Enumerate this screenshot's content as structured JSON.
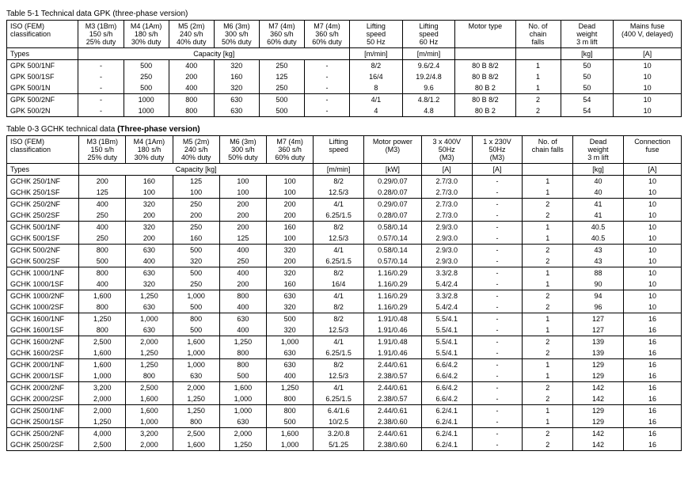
{
  "table1": {
    "title_prefix": "Table 5-1 Technical data GPK ",
    "title_suffix": "(three-phase version)",
    "header1": {
      "iso": "ISO (FEM)\nclassification",
      "m3": "M3 (1Bm)\n150 s/h\n25% duty",
      "m4": "M4 (1Am)\n180 s/h\n30% duty",
      "m5": "M5 (2m)\n240 s/h\n40% duty",
      "m6": "M6 (3m)\n300 s/h\n50% duty",
      "m7a": "M7 (4m)\n360 s/h\n60% duty",
      "m7b": "M7 (4m)\n360 s/h\n60% duty",
      "ls50": "Lifting\nspeed\n50 Hz",
      "ls60": "Lifting\nspeed\n60 Hz",
      "motor": "Motor type",
      "chain": "No. of\nchain\nfalls",
      "dead": "Dead\nweight\n3 m lift",
      "fuse": "Mains fuse\n(400 V, delayed)"
    },
    "header2": {
      "types": "Types",
      "capacity": "Capacity [kg]",
      "mmin1": "[m/min]",
      "mmin2": "[m/min]",
      "blank1": "",
      "blank2": "",
      "kg": "[kg]",
      "a": "[A]"
    },
    "groups": [
      {
        "types": [
          "GPK 500/1NF",
          "GPK 500/1SF",
          "GPK 500/1N"
        ],
        "m3": [
          "-",
          "-",
          "-"
        ],
        "m4": [
          "500",
          "250",
          "500"
        ],
        "m5": [
          "400",
          "200",
          "400"
        ],
        "m6": [
          "320",
          "160",
          "320"
        ],
        "m7a": [
          "250",
          "125",
          "250"
        ],
        "m7b": [
          "-",
          "-",
          "-"
        ],
        "ls50": [
          "8/2",
          "16/4",
          "8"
        ],
        "ls60": [
          "9.6/2.4",
          "19.2/4.8",
          "9.6"
        ],
        "motor": [
          "80 B 8/2",
          "80 B 8/2",
          "80 B 2"
        ],
        "chain": [
          "1",
          "1",
          "1"
        ],
        "dead": [
          "50",
          "50",
          "50"
        ],
        "fuse": [
          "10",
          "10",
          "10"
        ]
      },
      {
        "types": [
          "GPK 500/2NF",
          "GPK 500/2N"
        ],
        "m3": [
          "-",
          "-"
        ],
        "m4": [
          "1000",
          "1000"
        ],
        "m5": [
          "800",
          "800"
        ],
        "m6": [
          "630",
          "630"
        ],
        "m7a": [
          "500",
          "500"
        ],
        "m7b": [
          "-",
          "-"
        ],
        "ls50": [
          "4/1",
          "4"
        ],
        "ls60": [
          "4.8/1.2",
          "4.8"
        ],
        "motor": [
          "80 B 8/2",
          "80 B 2"
        ],
        "chain": [
          "2",
          "2"
        ],
        "dead": [
          "54",
          "54"
        ],
        "fuse": [
          "10",
          "10"
        ]
      }
    ]
  },
  "table2": {
    "title_prefix": "Table 0-3  GCHK technical data ",
    "title_suffix": "(Three-phase version)",
    "header1": {
      "iso": "ISO (FEM)\nclassification",
      "m3": "M3 (1Bm)\n150 s/h\n25% duty",
      "m4": "M4 (1Am)\n180 s/h\n30% duty",
      "m5": "M5 (2m)\n240 s/h\n40% duty",
      "m6": "M6 (3m)\n300 s/h\n50% duty",
      "m7": "M7 (4m)\n360 s/h\n60% duty",
      "ls": "Lifting\nspeed",
      "mp": "Motor power\n(M3)",
      "v400": "3 x 400V\n50Hz\n(M3)",
      "v230": "1 x 230V\n50Hz\n(M3)",
      "chain": "No. of\nchain falls",
      "dead": "Dead\nweight\n3 m lift",
      "fuse": "Connection\nfuse"
    },
    "header2": {
      "types": "Types",
      "capacity": "Capacity [kg]",
      "mmin": "[m/min]",
      "kw": "[kW]",
      "a1": "[A]",
      "a2": "[A]",
      "blank": "",
      "kg": "[kg]",
      "a3": "[A]"
    },
    "groups": [
      {
        "types": [
          "GCHK 250/1NF",
          "GCHK 250/1SF"
        ],
        "m3": [
          "200",
          "125"
        ],
        "m4": [
          "160",
          "100"
        ],
        "m5": [
          "125",
          "100"
        ],
        "m6": [
          "100",
          "100"
        ],
        "m7": [
          "100",
          "100"
        ],
        "ls": [
          "8/2",
          "12.5/3"
        ],
        "mp": [
          "0.29/0.07",
          "0.28/0.07"
        ],
        "v400": [
          "2.7/3.0",
          "2.7/3.0"
        ],
        "v230": [
          "-",
          "-"
        ],
        "chain": [
          "1",
          "1"
        ],
        "dead": [
          "40",
          "40"
        ],
        "fuse": [
          "10",
          "10"
        ]
      },
      {
        "types": [
          "GCHK 250/2NF",
          "GCHK 250/2SF"
        ],
        "m3": [
          "400",
          "250"
        ],
        "m4": [
          "320",
          "200"
        ],
        "m5": [
          "250",
          "200"
        ],
        "m6": [
          "200",
          "200"
        ],
        "m7": [
          "200",
          "200"
        ],
        "ls": [
          "4/1",
          "6.25/1.5"
        ],
        "mp": [
          "0.29/0.07",
          "0.28/0.07"
        ],
        "v400": [
          "2.7/3.0",
          "2.7/3.0"
        ],
        "v230": [
          "-",
          "-"
        ],
        "chain": [
          "2",
          "2"
        ],
        "dead": [
          "41",
          "41"
        ],
        "fuse": [
          "10",
          "10"
        ]
      },
      {
        "types": [
          "GCHK 500/1NF",
          "GCHK 500/1SF"
        ],
        "m3": [
          "400",
          "250"
        ],
        "m4": [
          "320",
          "200"
        ],
        "m5": [
          "250",
          "160"
        ],
        "m6": [
          "200",
          "125"
        ],
        "m7": [
          "160",
          "100"
        ],
        "ls": [
          "8/2",
          "12.5/3"
        ],
        "mp": [
          "0.58/0.14",
          "0.57/0.14"
        ],
        "v400": [
          "2.9/3.0",
          "2.9/3.0"
        ],
        "v230": [
          "-",
          "-"
        ],
        "chain": [
          "1",
          "1"
        ],
        "dead": [
          "40.5",
          "40.5"
        ],
        "fuse": [
          "10",
          "10"
        ]
      },
      {
        "types": [
          "GCHK 500/2NF",
          "GCHK 500/2SF"
        ],
        "m3": [
          "800",
          "500"
        ],
        "m4": [
          "630",
          "400"
        ],
        "m5": [
          "500",
          "320"
        ],
        "m6": [
          "400",
          "250"
        ],
        "m7": [
          "320",
          "200"
        ],
        "ls": [
          "4/1",
          "6.25/1.5"
        ],
        "mp": [
          "0.58/0.14",
          "0.57/0.14"
        ],
        "v400": [
          "2.9/3.0",
          "2.9/3.0"
        ],
        "v230": [
          "-",
          "-"
        ],
        "chain": [
          "2",
          "2"
        ],
        "dead": [
          "43",
          "43"
        ],
        "fuse": [
          "10",
          "10"
        ]
      },
      {
        "types": [
          "GCHK 1000/1NF",
          "GCHK 1000/1SF"
        ],
        "m3": [
          "800",
          "400"
        ],
        "m4": [
          "630",
          "320"
        ],
        "m5": [
          "500",
          "250"
        ],
        "m6": [
          "400",
          "200"
        ],
        "m7": [
          "320",
          "160"
        ],
        "ls": [
          "8/2",
          "16/4"
        ],
        "mp": [
          "1.16/0.29",
          "1.16/0.29"
        ],
        "v400": [
          "3.3/2.8",
          "5.4/2.4"
        ],
        "v230": [
          "-",
          "-"
        ],
        "chain": [
          "1",
          "1"
        ],
        "dead": [
          "88",
          "90"
        ],
        "fuse": [
          "10",
          "10"
        ]
      },
      {
        "types": [
          "GCHK 1000/2NF",
          "GCHK 1000/2SF"
        ],
        "m3": [
          "1,600",
          "800"
        ],
        "m4": [
          "1,250",
          "630"
        ],
        "m5": [
          "1,000",
          "500"
        ],
        "m6": [
          "800",
          "400"
        ],
        "m7": [
          "630",
          "320"
        ],
        "ls": [
          "4/1",
          "8/2"
        ],
        "mp": [
          "1.16/0.29",
          "1.16/0.29"
        ],
        "v400": [
          "3.3/2.8",
          "5.4/2.4"
        ],
        "v230": [
          "-",
          "-"
        ],
        "chain": [
          "2",
          "2"
        ],
        "dead": [
          "94",
          "96"
        ],
        "fuse": [
          "10",
          "10"
        ]
      },
      {
        "types": [
          "GCHK 1600/1NF",
          "GCHK 1600/1SF"
        ],
        "m3": [
          "1,250",
          "800"
        ],
        "m4": [
          "1,000",
          "630"
        ],
        "m5": [
          "800",
          "500"
        ],
        "m6": [
          "630",
          "400"
        ],
        "m7": [
          "500",
          "320"
        ],
        "ls": [
          "8/2",
          "12.5/3"
        ],
        "mp": [
          "1.91/0.48",
          "1.91/0.46"
        ],
        "v400": [
          "5.5/4.1",
          "5.5/4.1"
        ],
        "v230": [
          "-",
          "-"
        ],
        "chain": [
          "1",
          "1"
        ],
        "dead": [
          "127",
          "127"
        ],
        "fuse": [
          "16",
          "16"
        ]
      },
      {
        "types": [
          "GCHK 1600/2NF",
          "GCHK 1600/2SF"
        ],
        "m3": [
          "2,500",
          "1,600"
        ],
        "m4": [
          "2,000",
          "1,250"
        ],
        "m5": [
          "1,600",
          "1,000"
        ],
        "m6": [
          "1,250",
          "800"
        ],
        "m7": [
          "1,000",
          "630"
        ],
        "ls": [
          "4/1",
          "6.25/1.5"
        ],
        "mp": [
          "1.91/0.48",
          "1.91/0.46"
        ],
        "v400": [
          "5.5/4.1",
          "5.5/4.1"
        ],
        "v230": [
          "-",
          "-"
        ],
        "chain": [
          "2",
          "2"
        ],
        "dead": [
          "139",
          "139"
        ],
        "fuse": [
          "16",
          "16"
        ]
      },
      {
        "types": [
          "GCHK 2000/1NF",
          "GCHK 2000/1SF"
        ],
        "m3": [
          "1,600",
          "1,000"
        ],
        "m4": [
          "1,250",
          "800"
        ],
        "m5": [
          "1,000",
          "630"
        ],
        "m6": [
          "800",
          "500"
        ],
        "m7": [
          "630",
          "400"
        ],
        "ls": [
          "8/2",
          "12.5/3"
        ],
        "mp": [
          "2.44/0.61",
          "2.38/0.57"
        ],
        "v400": [
          "6.6/4.2",
          "6.6/4.2"
        ],
        "v230": [
          "-",
          "-"
        ],
        "chain": [
          "1",
          "1"
        ],
        "dead": [
          "129",
          "129"
        ],
        "fuse": [
          "16",
          "16"
        ]
      },
      {
        "types": [
          "GCHK 2000/2NF",
          "GCHK 2000/2SF"
        ],
        "m3": [
          "3,200",
          "2,000"
        ],
        "m4": [
          "2,500",
          "1,600"
        ],
        "m5": [
          "2,000",
          "1,250"
        ],
        "m6": [
          "1,600",
          "1,000"
        ],
        "m7": [
          "1,250",
          "800"
        ],
        "ls": [
          "4/1",
          "6.25/1.5"
        ],
        "mp": [
          "2.44/0.61",
          "2.38/0.57"
        ],
        "v400": [
          "6.6/4.2",
          "6.6/4.2"
        ],
        "v230": [
          "-",
          "-"
        ],
        "chain": [
          "2",
          "2"
        ],
        "dead": [
          "142",
          "142"
        ],
        "fuse": [
          "16",
          "16"
        ]
      },
      {
        "types": [
          "GCHK 2500/1NF",
          "GCHK 2500/1SF"
        ],
        "m3": [
          "2,000",
          "1,250"
        ],
        "m4": [
          "1,600",
          "1,000"
        ],
        "m5": [
          "1,250",
          "800"
        ],
        "m6": [
          "1,000",
          "630"
        ],
        "m7": [
          "800",
          "500"
        ],
        "ls": [
          "6.4/1.6",
          "10/2.5"
        ],
        "mp": [
          "2.44/0.61",
          "2.38/0.60"
        ],
        "v400": [
          "6.2/4.1",
          "6.2/4.1"
        ],
        "v230": [
          "-",
          "-"
        ],
        "chain": [
          "1",
          "1"
        ],
        "dead": [
          "129",
          "129"
        ],
        "fuse": [
          "16",
          "16"
        ]
      },
      {
        "types": [
          "GCHK 2500/2NF",
          "GCHK 2500/2SF"
        ],
        "m3": [
          "4,000",
          "2,500"
        ],
        "m4": [
          "3,200",
          "2,000"
        ],
        "m5": [
          "2,500",
          "1,600"
        ],
        "m6": [
          "2,000",
          "1,250"
        ],
        "m7": [
          "1,600",
          "1,000"
        ],
        "ls": [
          "3.2/0.8",
          "5/1.25"
        ],
        "mp": [
          "2.44/0.61",
          "2.38/0.60"
        ],
        "v400": [
          "6.2/4.1",
          "6.2/4.1"
        ],
        "v230": [
          "-",
          "-"
        ],
        "chain": [
          "2",
          "2"
        ],
        "dead": [
          "142",
          "142"
        ],
        "fuse": [
          "16",
          "16"
        ]
      }
    ]
  }
}
